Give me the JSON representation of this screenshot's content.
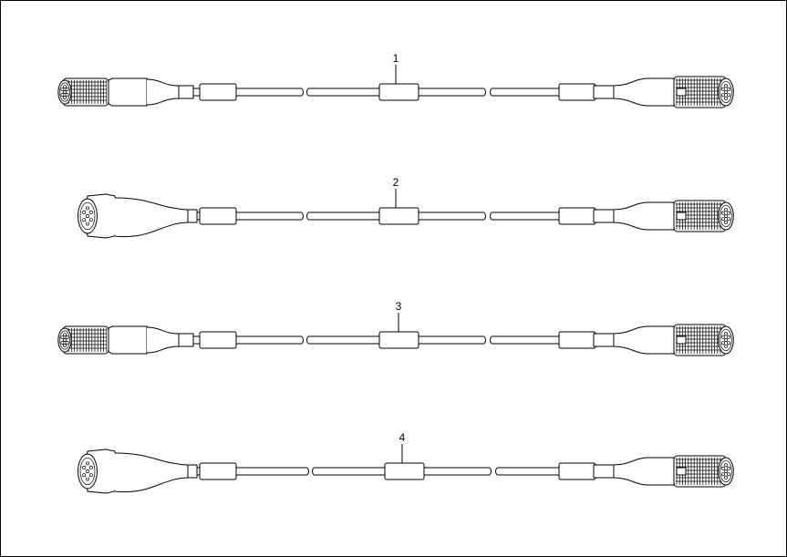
{
  "diagram": {
    "cables": [
      {
        "label": "1",
        "left_connector": "male-plug",
        "right_connector": "male-plug"
      },
      {
        "label": "2",
        "left_connector": "panel-socket",
        "right_connector": "male-plug"
      },
      {
        "label": "3",
        "left_connector": "female-plug",
        "right_connector": "male-plug"
      },
      {
        "label": "4",
        "left_connector": "panel-socket",
        "right_connector": "male-plug"
      }
    ]
  }
}
